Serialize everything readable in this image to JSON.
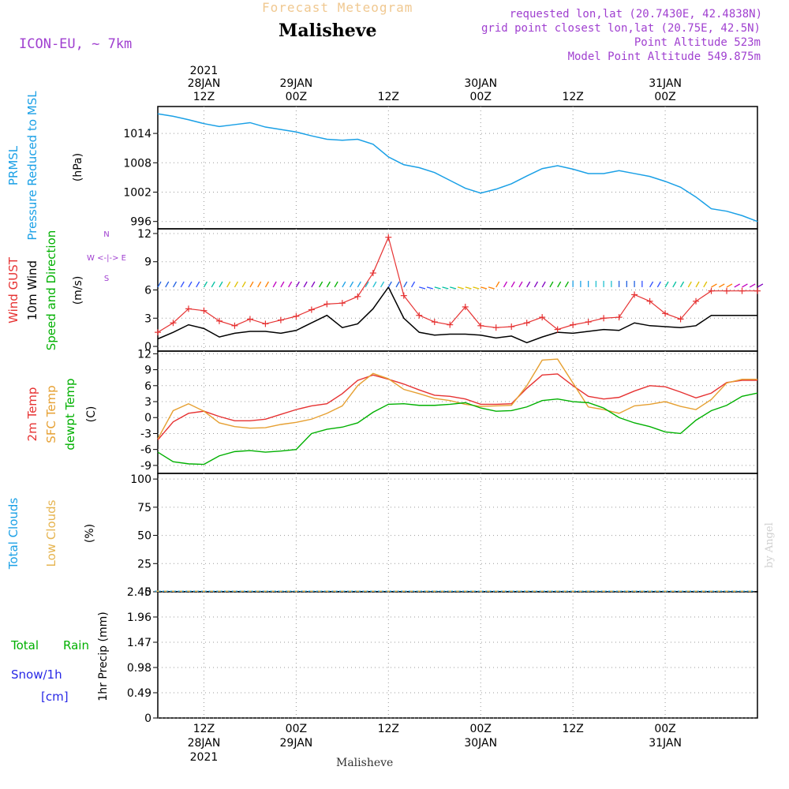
{
  "header": {
    "subtitle": "Forecast Meteogram",
    "location": "Malisheve",
    "model": "ICON-EU, ~ 7km",
    "requested": "requested lon,lat (20.7430E, 42.4838N)",
    "grid_point": "grid point closest lon,lat (20.75E, 42.5N)",
    "point_altitude": "Point Altitude 523m",
    "model_altitude": "Model Point Altitude 549.875m",
    "footer_location": "Malisheve",
    "credit": "by Angel"
  },
  "time_axis": {
    "top_labels": [
      {
        "line1": "2021",
        "line2": "28JAN",
        "line3": "12Z",
        "hours": 12
      },
      {
        "line1": "",
        "line2": "29JAN",
        "line3": "00Z",
        "hours": 24
      },
      {
        "line1": "",
        "line2": "",
        "line3": "12Z",
        "hours": 36
      },
      {
        "line1": "",
        "line2": "30JAN",
        "line3": "00Z",
        "hours": 48
      },
      {
        "line1": "",
        "line2": "",
        "line3": "12Z",
        "hours": 60
      },
      {
        "line1": "",
        "line2": "31JAN",
        "line3": "00Z",
        "hours": 72
      }
    ],
    "bottom_labels": [
      {
        "line1": "12Z",
        "line2": "28JAN",
        "line3": "2021",
        "hours": 12
      },
      {
        "line1": "00Z",
        "line2": "29JAN",
        "line3": "",
        "hours": 24
      },
      {
        "line1": "12Z",
        "line2": "",
        "line3": "",
        "hours": 36
      },
      {
        "line1": "00Z",
        "line2": "30JAN",
        "line3": "",
        "hours": 48
      },
      {
        "line1": "12Z",
        "line2": "",
        "line3": "",
        "hours": 60
      },
      {
        "line1": "00Z",
        "line2": "31JAN",
        "line3": "",
        "hours": 72
      }
    ],
    "range_hours": [
      6,
      84
    ]
  },
  "panels": {
    "pressure": {
      "labels": [
        "PRMSL",
        "Pressure Reduced to MSL"
      ],
      "ylabel": "(hPa)",
      "ticks": [
        996,
        1002,
        1008,
        1014
      ],
      "ylim": [
        994.5,
        1019.5
      ],
      "color": "#1aa0e6"
    },
    "wind": {
      "labels": [
        "Wind GUST",
        "10m Wind",
        "Speed and Direction"
      ],
      "label_colors": [
        "#e63232",
        "#000000",
        "#00b000"
      ],
      "ylabel": "(m/s)",
      "compass": [
        "N",
        "W <-|-> E",
        "S"
      ],
      "ticks": [
        0,
        3,
        6,
        9,
        12
      ],
      "ylim": [
        -0.5,
        12.5
      ],
      "gust_color": "#e63232",
      "wind_color": "#000000"
    },
    "temperature": {
      "labels": [
        "2m Temp",
        "SFC Temp",
        "dewpt Temp"
      ],
      "label_colors": [
        "#e63232",
        "#e6a032",
        "#00b000"
      ],
      "ylabel": "(C)",
      "ticks": [
        -9,
        -6,
        -3,
        0,
        3,
        6,
        9,
        12
      ],
      "ylim": [
        -10.5,
        12.5
      ]
    },
    "clouds": {
      "labels": [
        "Total Clouds",
        "Low Clouds"
      ],
      "label_colors": [
        "#1aa0e6",
        "#e6b450"
      ],
      "ylabel": "(%)",
      "ticks": [
        0,
        25,
        50,
        75,
        100
      ],
      "ylim": [
        0,
        105
      ]
    },
    "precip": {
      "labels": [
        "Total",
        "Rain",
        "Snow/1h",
        "[cm]"
      ],
      "label_colors": [
        "#00b000",
        "#00b000",
        "#2828e6",
        "#2828e6"
      ],
      "ylabel": "1hr Precip (mm)",
      "ticks": [
        0,
        0.49,
        0.98,
        1.47,
        1.96,
        2.45
      ],
      "ylim": [
        0,
        2.45
      ],
      "color": "#22c422"
    }
  },
  "chart_data": [
    {
      "type": "line",
      "title": "PRMSL Pressure Reduced to MSL",
      "ylabel": "(hPa)",
      "x_hours": [
        6,
        8,
        10,
        12,
        14,
        16,
        18,
        20,
        22,
        24,
        26,
        28,
        30,
        32,
        34,
        36,
        38,
        40,
        42,
        44,
        46,
        48,
        50,
        52,
        54,
        56,
        58,
        60,
        62,
        64,
        66,
        68,
        70,
        72,
        74,
        76,
        78,
        80,
        82,
        84
      ],
      "series": [
        {
          "name": "PRMSL",
          "values": [
            1018,
            1017.5,
            1016.8,
            1016,
            1015.4,
            1015.8,
            1016.2,
            1015.3,
            1014.8,
            1014.3,
            1013.5,
            1012.8,
            1012.6,
            1012.8,
            1011.8,
            1009.2,
            1007.6,
            1007,
            1006,
            1004.4,
            1002.8,
            1001.8,
            1002.6,
            1003.7,
            1005.3,
            1006.8,
            1007.4,
            1006.7,
            1005.8,
            1005.8,
            1006.4,
            1005.8,
            1005.2,
            1004.2,
            1003,
            1001,
            998.6,
            998.1,
            997.2,
            996
          ]
        }
      ]
    },
    {
      "type": "line",
      "title": "Wind GUST / 10m Wind",
      "ylabel": "(m/s)",
      "x_hours": [
        6,
        8,
        10,
        12,
        14,
        16,
        18,
        20,
        22,
        24,
        26,
        28,
        30,
        32,
        34,
        36,
        38,
        40,
        42,
        44,
        46,
        48,
        50,
        52,
        54,
        56,
        58,
        60,
        62,
        64,
        66,
        68,
        70,
        72,
        74,
        76,
        78,
        80,
        82,
        84
      ],
      "series": [
        {
          "name": "Wind GUST",
          "values": [
            1.5,
            2.5,
            4,
            3.8,
            2.7,
            2.2,
            2.9,
            2.4,
            2.8,
            3.2,
            3.9,
            4.5,
            4.6,
            5.3,
            7.8,
            11.6,
            5.4,
            3.3,
            2.6,
            2.3,
            4.2,
            2.2,
            2,
            2.1,
            2.5,
            3.1,
            1.8,
            2.3,
            2.6,
            3,
            3.1,
            5.5,
            4.8,
            3.5,
            2.9,
            4.8,
            5.9,
            5.9,
            5.9,
            5.9
          ]
        },
        {
          "name": "10m Wind",
          "values": [
            0.8,
            1.5,
            2.3,
            1.9,
            1,
            1.4,
            1.6,
            1.6,
            1.4,
            1.7,
            2.5,
            3.3,
            2,
            2.4,
            4,
            6.3,
            3,
            1.5,
            1.2,
            1.3,
            1.3,
            1.2,
            0.9,
            1.1,
            0.4,
            1,
            1.5,
            1.4,
            1.6,
            1.8,
            1.7,
            2.5,
            2.2,
            2.1,
            2,
            2.2,
            3.3,
            3.3,
            3.3,
            3.3
          ]
        }
      ]
    },
    {
      "type": "line",
      "title": "2m Temp / SFC Temp / dewpt Temp",
      "ylabel": "(C)",
      "x_hours": [
        6,
        8,
        10,
        12,
        14,
        16,
        18,
        20,
        22,
        24,
        26,
        28,
        30,
        32,
        34,
        36,
        38,
        40,
        42,
        44,
        46,
        48,
        50,
        52,
        54,
        56,
        58,
        60,
        62,
        64,
        66,
        68,
        70,
        72,
        74,
        76,
        78,
        80,
        82,
        84
      ],
      "series": [
        {
          "name": "2m Temp",
          "values": [
            -4.2,
            -0.8,
            0.8,
            1.2,
            0.2,
            -0.6,
            -0.6,
            -0.3,
            0.6,
            1.5,
            2.2,
            2.6,
            4.5,
            7,
            8,
            7.2,
            6.3,
            5.2,
            4.2,
            4,
            3.5,
            2.5,
            2.5,
            2.6,
            5.5,
            8,
            8.2,
            6,
            4,
            3.5,
            3.8,
            5,
            6,
            5.8,
            4.8,
            3.7,
            4.6,
            6.6,
            7,
            7
          ]
        },
        {
          "name": "SFC Temp",
          "values": [
            -4,
            1.3,
            2.6,
            1.2,
            -1,
            -1.7,
            -2,
            -1.9,
            -1.3,
            -0.9,
            -0.3,
            0.8,
            2.2,
            6,
            8.3,
            7.3,
            5.3,
            4.5,
            3.6,
            3.2,
            2.5,
            2.1,
            2.2,
            2.3,
            6,
            10.8,
            11,
            6.5,
            2,
            1.5,
            0.8,
            2.2,
            2.5,
            3,
            2.1,
            1.5,
            3.4,
            6.5,
            7.2,
            7.2
          ]
        },
        {
          "name": "dewpt Temp",
          "values": [
            -6.5,
            -8.3,
            -8.7,
            -8.8,
            -7.2,
            -6.4,
            -6.2,
            -6.5,
            -6.3,
            -6,
            -3,
            -2.2,
            -1.8,
            -1,
            1,
            2.5,
            2.6,
            2.3,
            2.3,
            2.5,
            2.8,
            1.8,
            1.2,
            1.3,
            2,
            3.2,
            3.5,
            3,
            2.8,
            1.8,
            0,
            -1,
            -1.7,
            -2.7,
            -3,
            -0.5,
            1.3,
            2.3,
            4,
            4.6
          ]
        }
      ]
    },
    {
      "type": "bar",
      "title": "Total Clouds / Low Clouds",
      "ylabel": "(%)",
      "x_hours_start": 6,
      "x_hours_step": 1,
      "series": [
        {
          "name": "Total Clouds",
          "values": [
            1,
            1,
            1,
            1,
            1,
            1,
            1,
            1,
            1,
            1,
            1,
            1,
            1,
            1,
            1,
            1,
            1,
            1,
            1,
            1,
            1,
            1,
            1,
            1,
            1,
            1,
            1,
            1,
            1,
            1,
            1,
            1,
            1,
            1,
            1,
            1,
            1,
            1,
            1,
            1,
            1,
            1,
            1,
            1,
            1,
            1,
            1,
            1,
            1,
            1,
            1,
            1,
            1,
            1,
            1,
            1,
            1,
            1,
            1,
            1,
            1,
            1,
            1,
            1,
            1,
            1,
            1,
            1,
            1,
            1,
            1,
            1,
            1,
            1,
            1,
            1,
            1,
            1
          ]
        },
        {
          "name": "Low Clouds",
          "values": [
            1,
            1,
            1,
            1,
            1,
            1,
            1,
            1,
            1,
            1,
            1,
            1,
            1,
            1,
            1,
            1,
            1,
            1,
            1,
            1,
            1,
            1,
            1,
            1,
            1,
            1,
            1,
            1,
            1,
            1,
            1,
            1,
            1,
            1,
            1,
            1,
            1,
            1,
            1,
            1,
            1,
            1,
            1,
            1,
            1,
            1,
            1,
            1,
            1,
            1,
            1,
            1,
            1,
            1,
            1,
            1,
            1,
            1,
            1,
            1,
            1,
            1,
            1,
            1,
            1,
            1,
            1,
            1,
            1,
            1,
            1,
            1,
            1,
            1,
            1,
            1,
            1,
            1
          ]
        }
      ]
    },
    {
      "type": "bar",
      "title": "1hr Precip",
      "ylabel": "1hr Precip (mm)",
      "x_hours_start": 6,
      "x_hours_step": 1,
      "series": [
        {
          "name": "Total Rain",
          "values": [
            0,
            0,
            0,
            0,
            0,
            0,
            0,
            0,
            0,
            0,
            0,
            0,
            0,
            0,
            0,
            0,
            0,
            0,
            0,
            0,
            0,
            0,
            0,
            0,
            0,
            0,
            0,
            0,
            0,
            0,
            0,
            0,
            0,
            0,
            0,
            0,
            0,
            0,
            0,
            0,
            0,
            0,
            0,
            0,
            0,
            0,
            0,
            0,
            0,
            0,
            0,
            0,
            0,
            0,
            0,
            0,
            0,
            0,
            0,
            0,
            0,
            0,
            0,
            0,
            0,
            0,
            0,
            0,
            0,
            0,
            0,
            0,
            0,
            0,
            0,
            0,
            0,
            0
          ]
        }
      ]
    }
  ]
}
